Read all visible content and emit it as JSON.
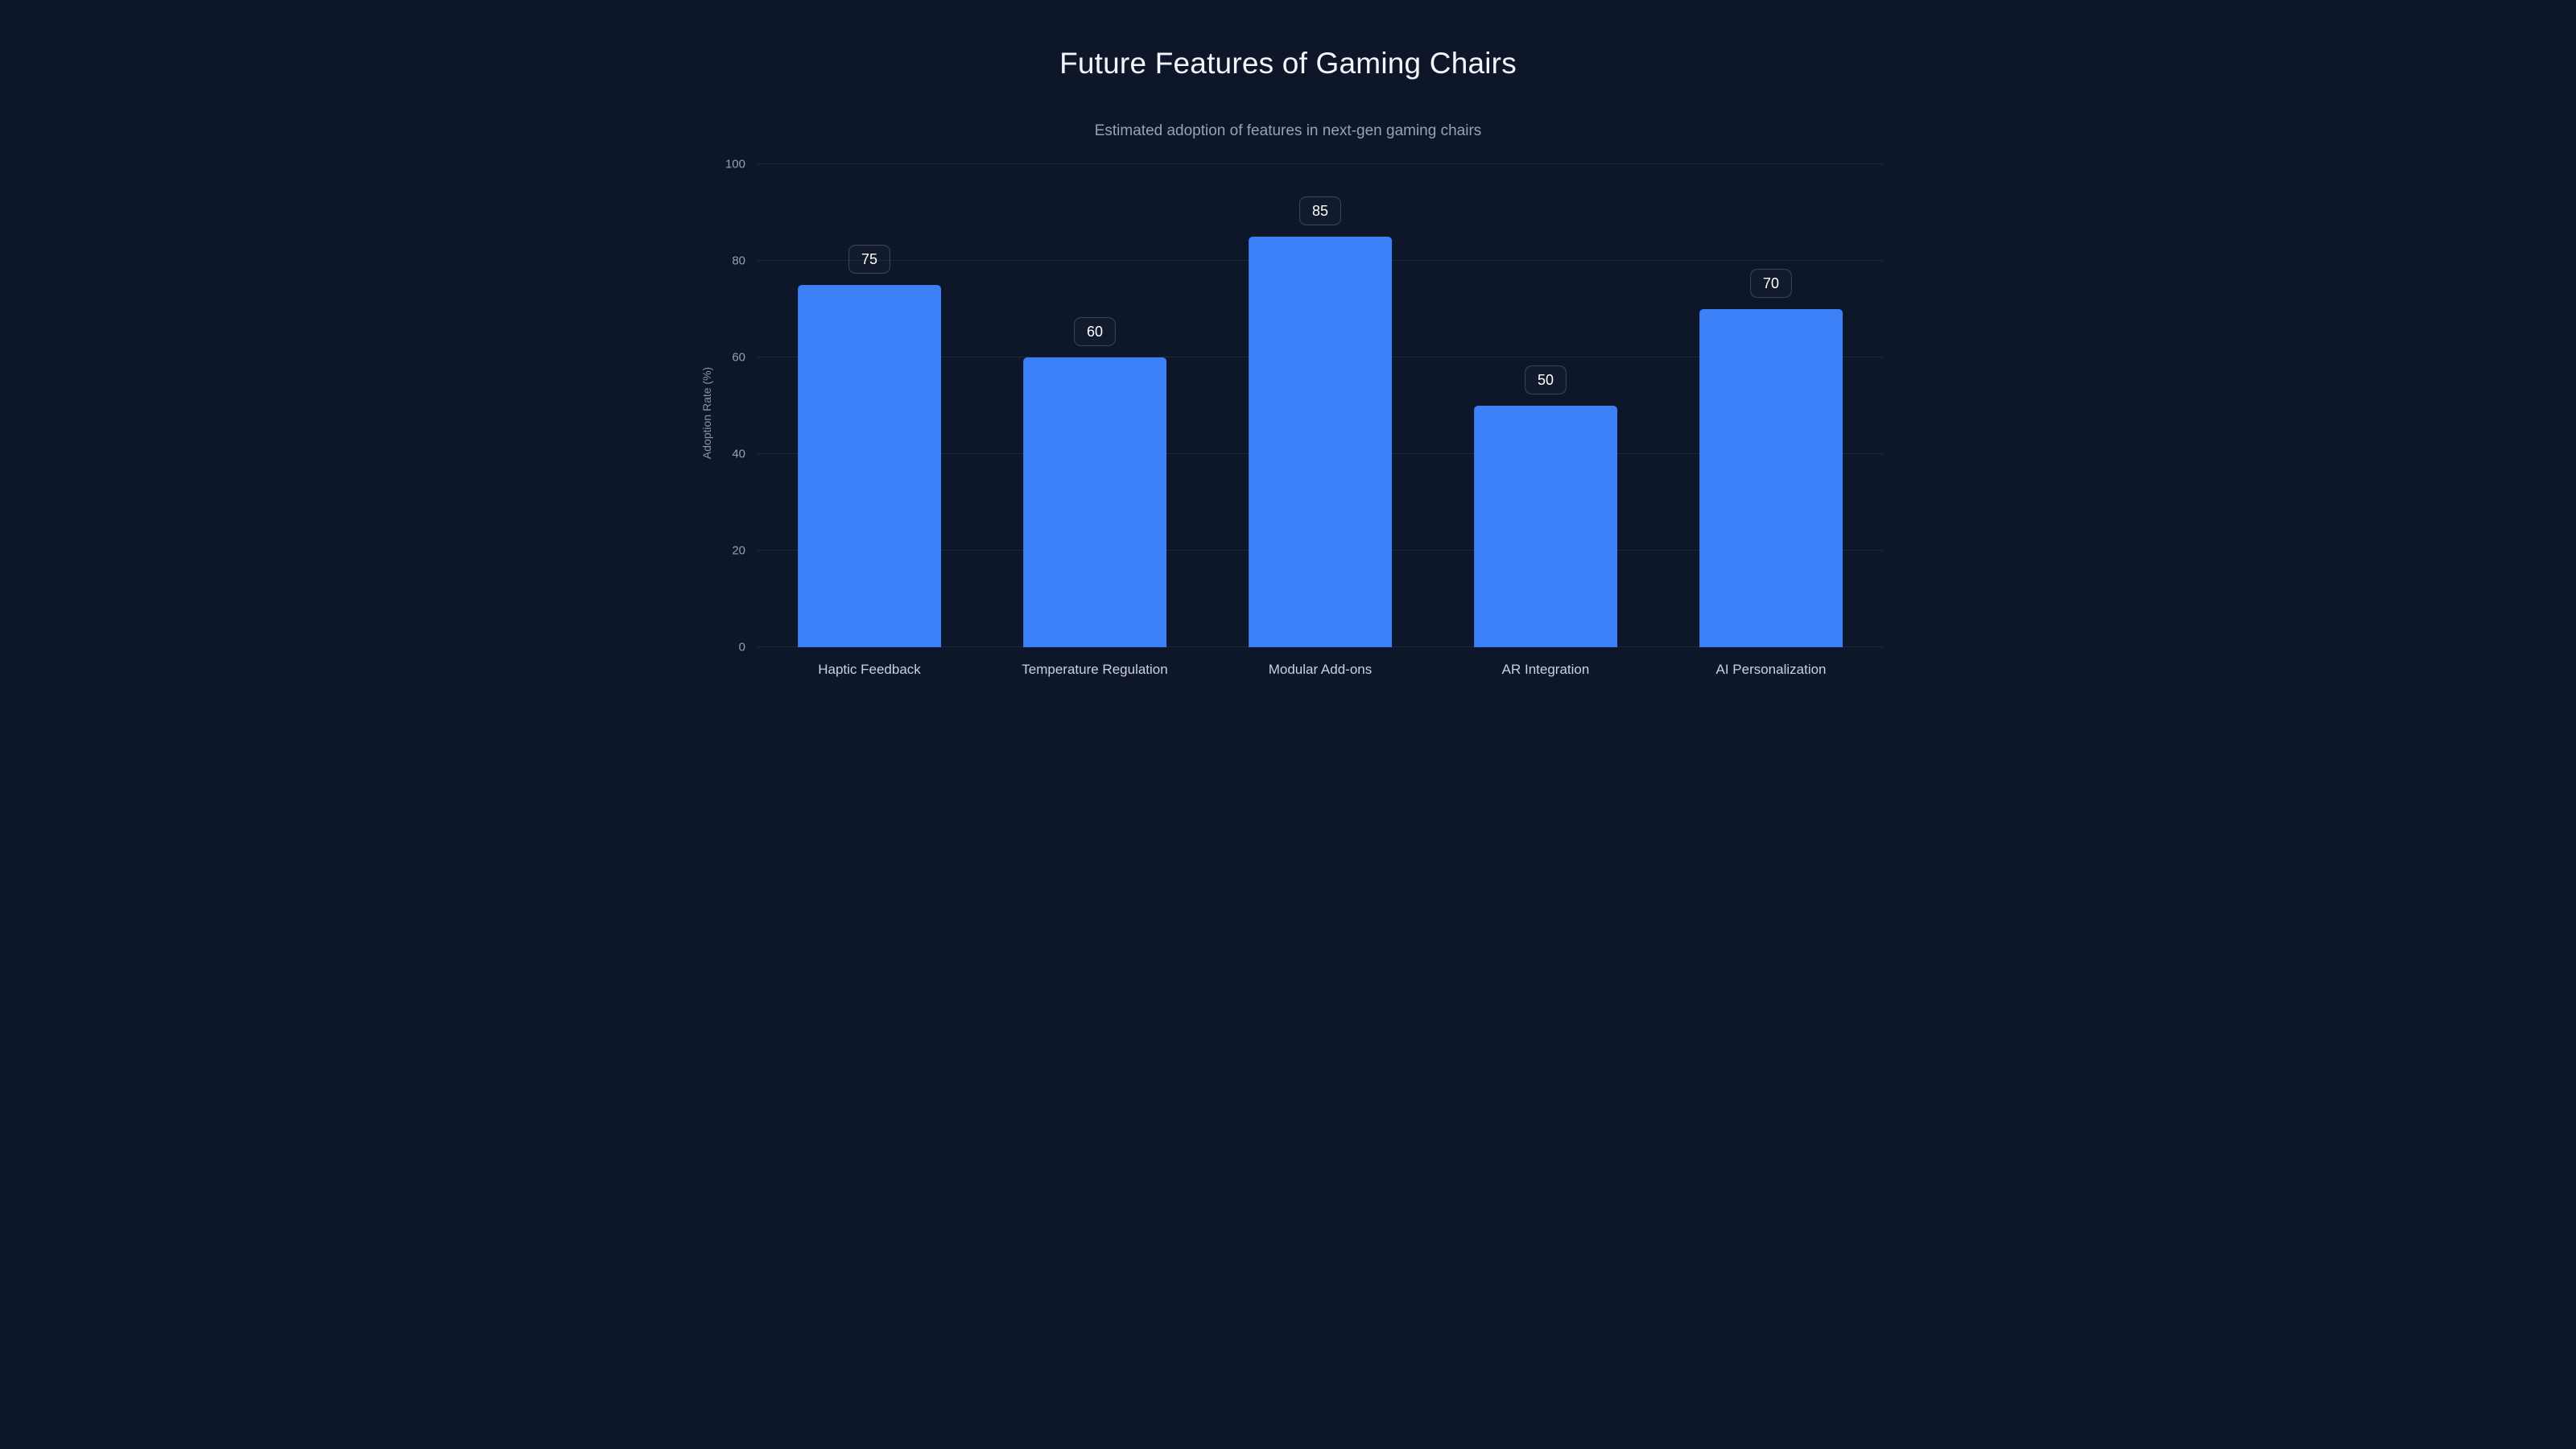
{
  "header": {
    "title": "Future Features of Gaming Chairs",
    "subtitle": "Estimated adoption of features in next-gen gaming chairs"
  },
  "chart_data": {
    "type": "bar",
    "title": "Future Features of Gaming Chairs",
    "subtitle": "Estimated adoption of features in next-gen gaming chairs",
    "categories": [
      "Haptic Feedback",
      "Temperature Regulation",
      "Modular Add-ons",
      "AR Integration",
      "AI Personalization"
    ],
    "values": [
      75,
      60,
      85,
      50,
      70
    ],
    "value_labels": [
      "75",
      "60",
      "85",
      "50",
      "70"
    ],
    "xlabel": "",
    "ylabel": "Adoption Rate (%)",
    "ylim": [
      0,
      100
    ],
    "yticks": [
      0,
      20,
      40,
      60,
      80,
      100
    ],
    "grid": true,
    "legend": "none",
    "bar_color": "#3B80F6",
    "background_color": "#0E1629"
  }
}
